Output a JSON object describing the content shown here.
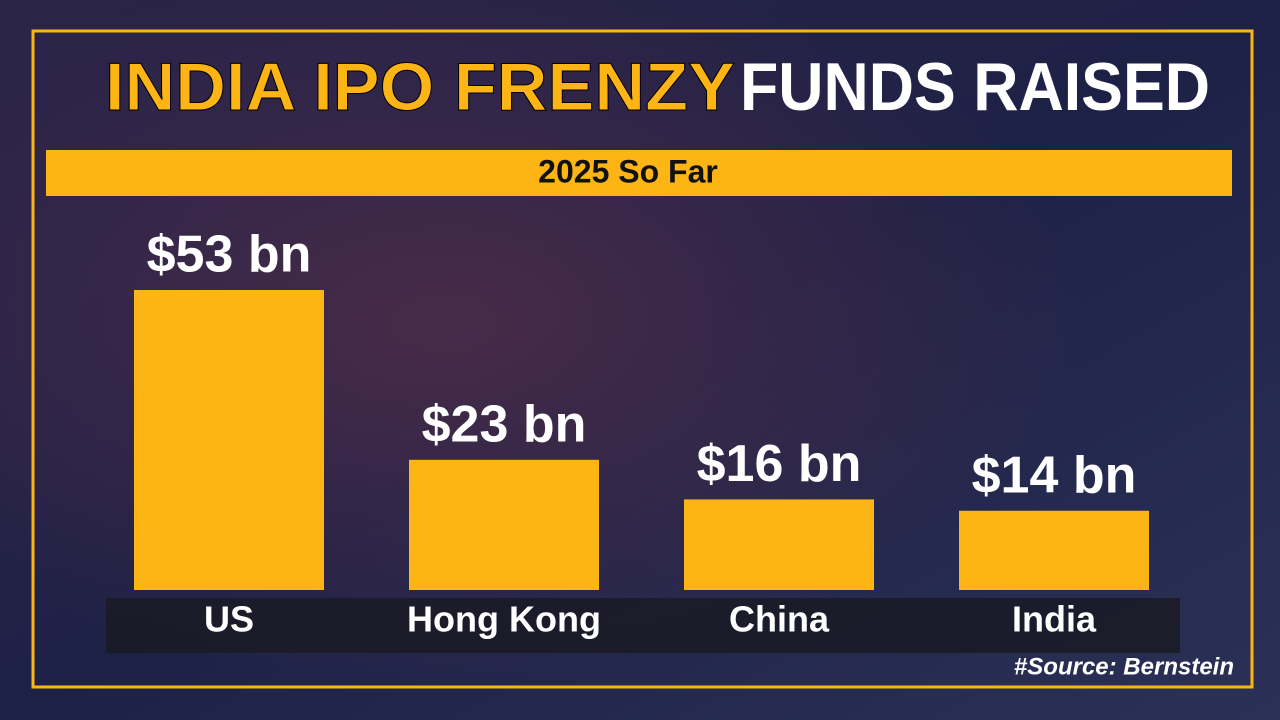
{
  "chart_data": {
    "type": "bar",
    "title": "INDIA IPO FRENZY",
    "title_secondary": "FUNDS RAISED",
    "subtitle": "2025 So Far",
    "categories": [
      "US",
      "Hong Kong",
      "China",
      "India"
    ],
    "values": [
      53,
      23,
      16,
      14
    ],
    "value_labels": [
      "$53 bn",
      "$23 bn",
      "$16 bn",
      "$14 bn"
    ],
    "color": "#fdb515",
    "source": "#Source: Bernstein"
  }
}
